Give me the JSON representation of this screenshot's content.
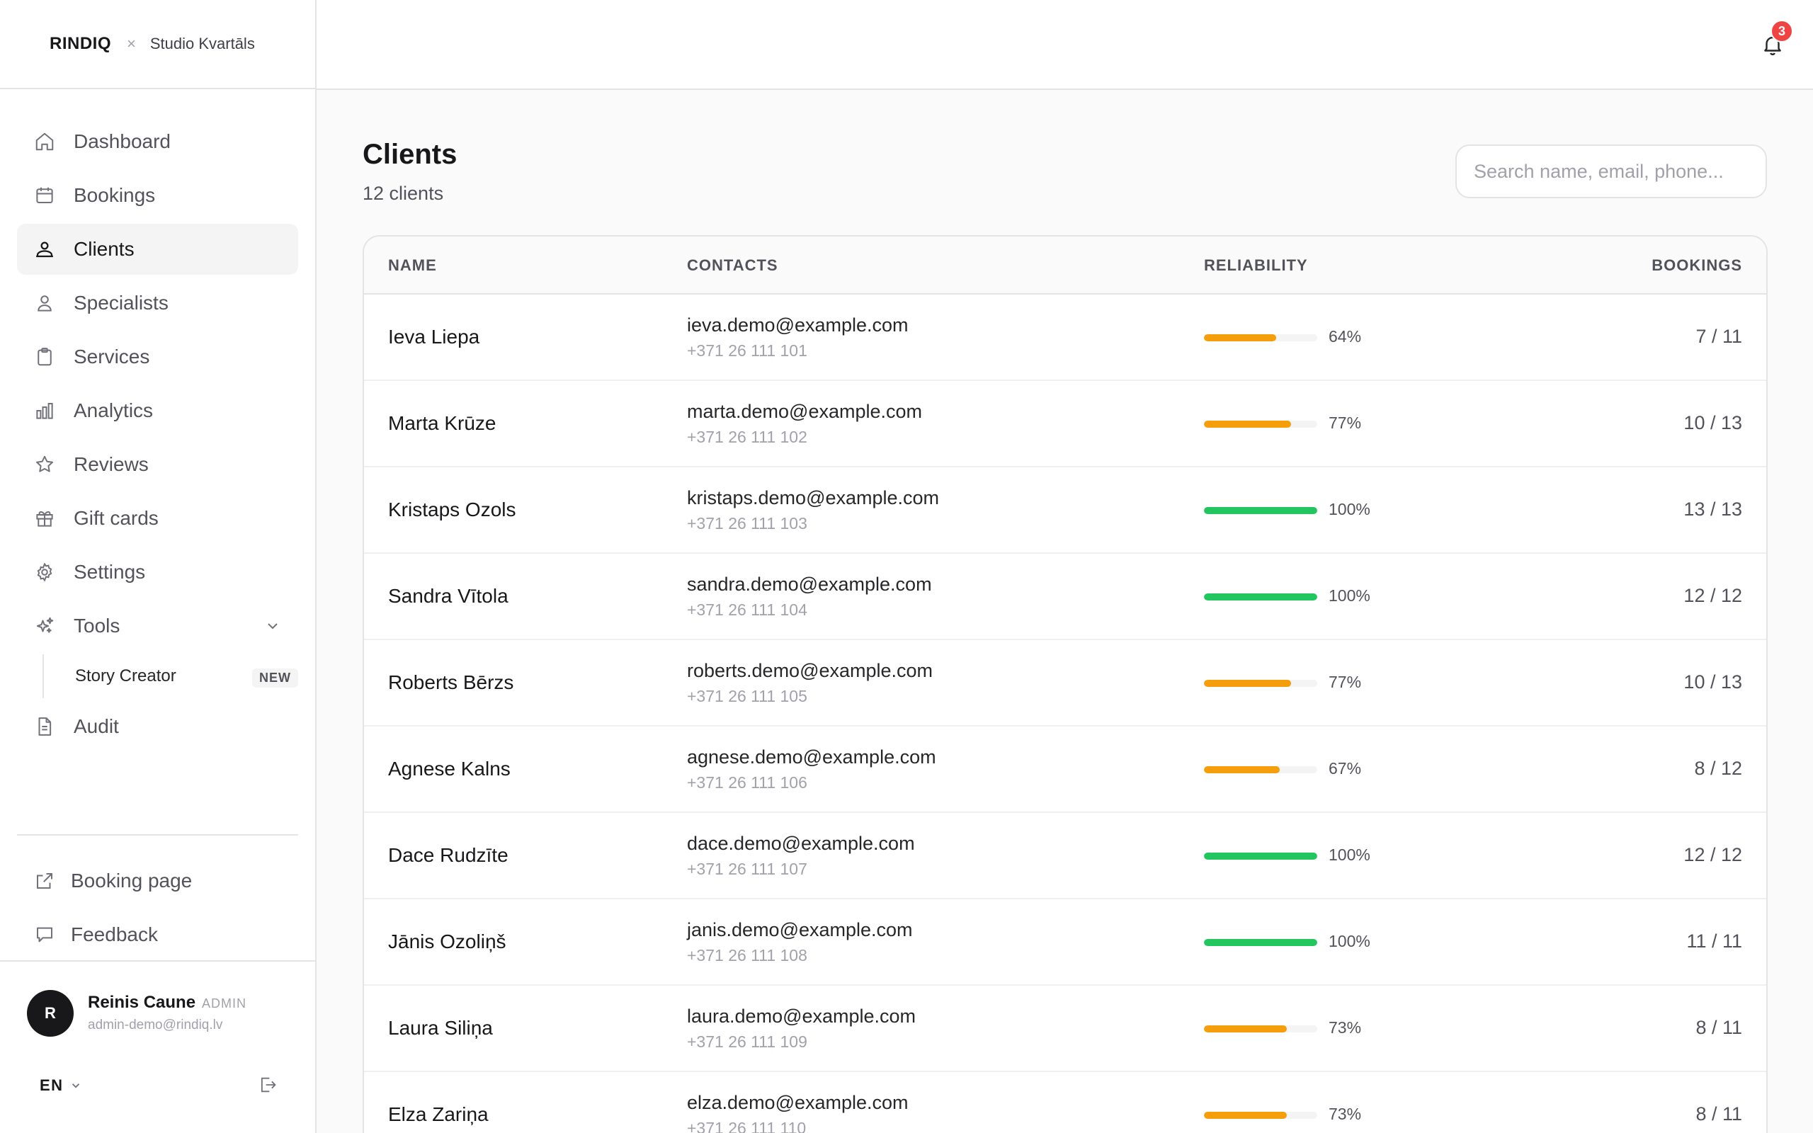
{
  "brand": {
    "name": "RINDIQ",
    "separator": "×",
    "studio": "Studio Kvartāls"
  },
  "nav": {
    "items": [
      {
        "label": "Dashboard",
        "icon": "home-icon"
      },
      {
        "label": "Bookings",
        "icon": "calendar-icon"
      },
      {
        "label": "Clients",
        "icon": "clients-icon",
        "active": true
      },
      {
        "label": "Specialists",
        "icon": "user-icon"
      },
      {
        "label": "Services",
        "icon": "clipboard-icon"
      },
      {
        "label": "Analytics",
        "icon": "bar-chart-icon"
      },
      {
        "label": "Reviews",
        "icon": "star-icon"
      },
      {
        "label": "Gift cards",
        "icon": "gift-icon"
      },
      {
        "label": "Settings",
        "icon": "gear-icon"
      },
      {
        "label": "Tools",
        "icon": "sparkles-icon"
      }
    ],
    "tools_sub": {
      "label": "Story Creator",
      "badge": "NEW"
    },
    "audit": {
      "label": "Audit",
      "icon": "document-icon"
    }
  },
  "bottom_links": [
    {
      "label": "Booking page",
      "icon": "external-link-icon"
    },
    {
      "label": "Feedback",
      "icon": "chat-icon"
    }
  ],
  "user": {
    "initial": "R",
    "name": "Reinis Caune",
    "role": "ADMIN",
    "email": "admin-demo@rindiq.lv"
  },
  "language": {
    "current": "EN"
  },
  "notifications": {
    "count": "3"
  },
  "page": {
    "title": "Clients",
    "count_text": "12 clients"
  },
  "search": {
    "placeholder": "Search name, email, phone..."
  },
  "table": {
    "headers": {
      "name": "NAME",
      "contacts": "CONTACTS",
      "reliability": "RELIABILITY",
      "bookings": "BOOKINGS"
    },
    "rows": [
      {
        "name": "Ieva Liepa",
        "email": "ieva.demo@example.com",
        "phone": "+371 26 111 101",
        "reliability": 64,
        "reliability_label": "64%",
        "bookings": "7 / 11"
      },
      {
        "name": "Marta Krūze",
        "email": "marta.demo@example.com",
        "phone": "+371 26 111 102",
        "reliability": 77,
        "reliability_label": "77%",
        "bookings": "10 / 13"
      },
      {
        "name": "Kristaps Ozols",
        "email": "kristaps.demo@example.com",
        "phone": "+371 26 111 103",
        "reliability": 100,
        "reliability_label": "100%",
        "bookings": "13 / 13"
      },
      {
        "name": "Sandra Vītola",
        "email": "sandra.demo@example.com",
        "phone": "+371 26 111 104",
        "reliability": 100,
        "reliability_label": "100%",
        "bookings": "12 / 12"
      },
      {
        "name": "Roberts Bērzs",
        "email": "roberts.demo@example.com",
        "phone": "+371 26 111 105",
        "reliability": 77,
        "reliability_label": "77%",
        "bookings": "10 / 13"
      },
      {
        "name": "Agnese Kalns",
        "email": "agnese.demo@example.com",
        "phone": "+371 26 111 106",
        "reliability": 67,
        "reliability_label": "67%",
        "bookings": "8 / 12"
      },
      {
        "name": "Dace Rudzīte",
        "email": "dace.demo@example.com",
        "phone": "+371 26 111 107",
        "reliability": 100,
        "reliability_label": "100%",
        "bookings": "12 / 12"
      },
      {
        "name": "Jānis Ozoliņš",
        "email": "janis.demo@example.com",
        "phone": "+371 26 111 108",
        "reliability": 100,
        "reliability_label": "100%",
        "bookings": "11 / 11"
      },
      {
        "name": "Laura Siliņa",
        "email": "laura.demo@example.com",
        "phone": "+371 26 111 109",
        "reliability": 73,
        "reliability_label": "73%",
        "bookings": "8 / 11"
      },
      {
        "name": "Elza Zariņa",
        "email": "elza.demo@example.com",
        "phone": "+371 26 111 110",
        "reliability": 73,
        "reliability_label": "73%",
        "bookings": "8 / 11"
      }
    ]
  },
  "colors": {
    "reliability_full": "#22c55e",
    "reliability_partial": "#f59e0b",
    "badge_red": "#ef4444"
  }
}
